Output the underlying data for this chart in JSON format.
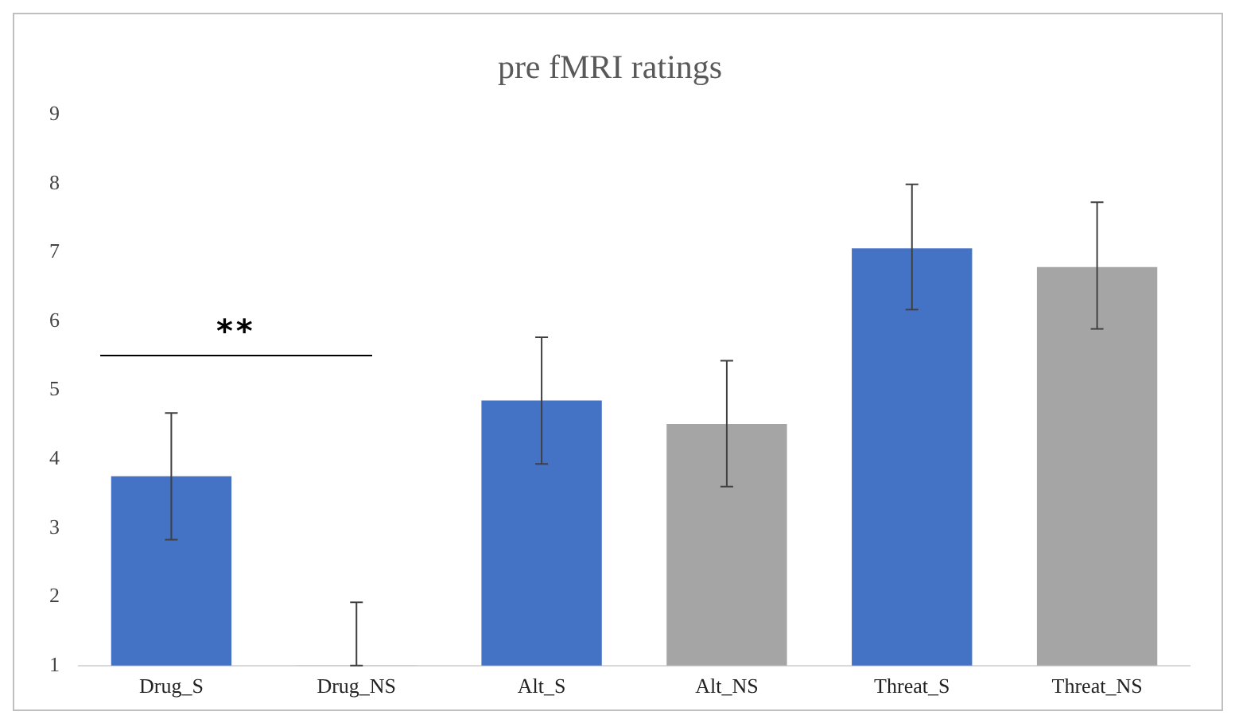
{
  "chart_data": {
    "type": "bar",
    "title": "pre fMRI ratings",
    "categories": [
      "Drug_S",
      "Drug_NS",
      "Alt_S",
      "Alt_NS",
      "Threat_S",
      "Threat_NS"
    ],
    "values": [
      3.75,
      1,
      4.85,
      4.51,
      7.06,
      6.79
    ],
    "colors": [
      "#4472c4",
      "#a5a5a5",
      "#4472c4",
      "#a5a5a5",
      "#4472c4",
      "#a5a5a5"
    ],
    "errors": [
      [
        2.83,
        4.67
      ],
      [
        1,
        1.92
      ],
      [
        3.93,
        5.77
      ],
      [
        3.6,
        5.43
      ],
      [
        6.17,
        7.99
      ],
      [
        5.89,
        7.73
      ]
    ],
    "ylim": [
      1,
      9
    ],
    "yticks": [
      1,
      2,
      3,
      4,
      5,
      6,
      7,
      8,
      9
    ],
    "grid": false,
    "legend": false,
    "annotations": [
      "**"
    ]
  }
}
